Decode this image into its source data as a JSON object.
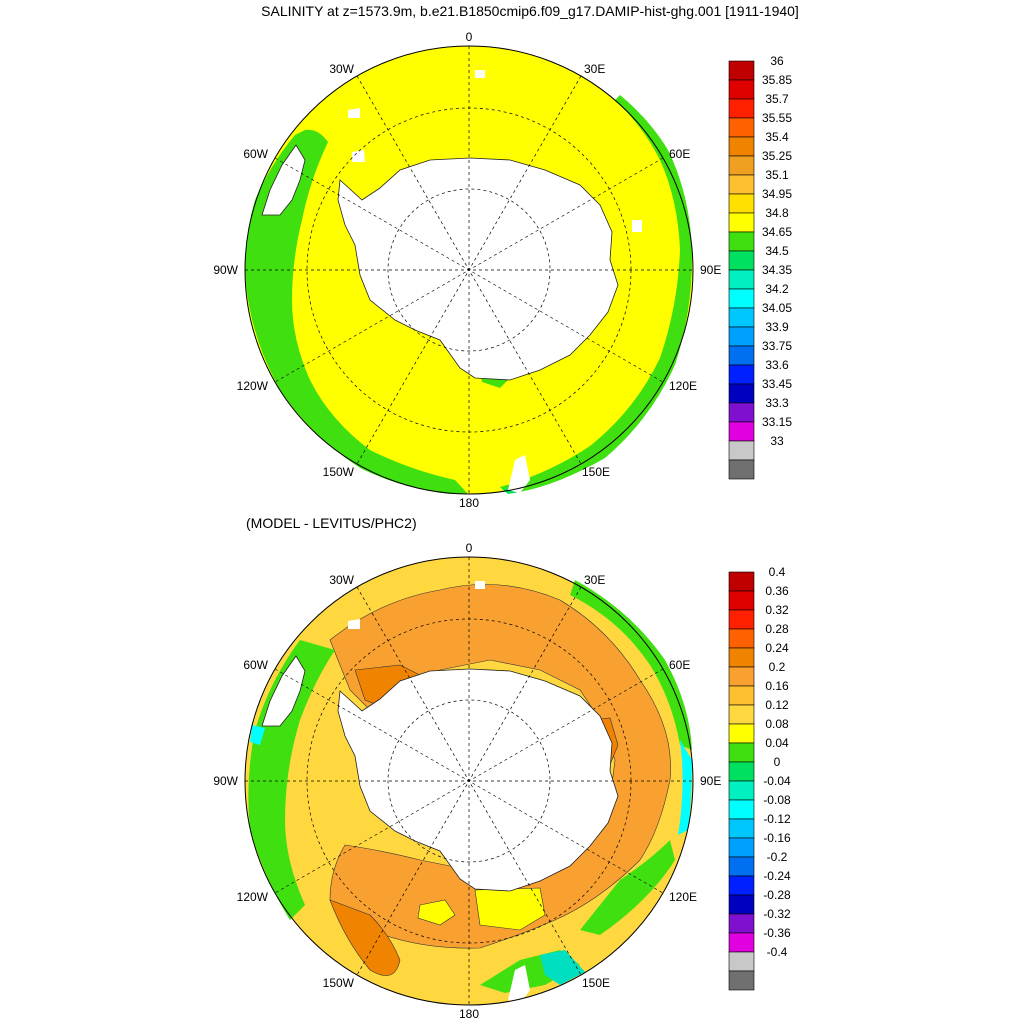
{
  "top_panel": {
    "title": "SALINITY at z=1573.9m, b.e21.B1850cmip6.f09_g17.DAMIP-hist-ghg.001 [1911-1940]",
    "lon_labels": [
      "0",
      "30E",
      "60E",
      "90E",
      "120E",
      "150E",
      "180",
      "150W",
      "120W",
      "90W",
      "60W",
      "30W"
    ],
    "colorbar": {
      "labels": [
        "36",
        "35.85",
        "35.7",
        "35.55",
        "35.4",
        "35.25",
        "35.1",
        "34.95",
        "34.8",
        "34.65",
        "34.5",
        "34.35",
        "34.2",
        "34.05",
        "33.9",
        "33.75",
        "33.6",
        "33.45",
        "33.3",
        "33.15",
        "33"
      ],
      "colors": [
        "#c00000",
        "#e00000",
        "#ff2000",
        "#ff6000",
        "#f08400",
        "#f0a020",
        "#ffc030",
        "#ffe000",
        "#ffff00",
        "#40e010",
        "#00e060",
        "#00f0c0",
        "#00ffff",
        "#00c8ff",
        "#00a0ff",
        "#0070f0",
        "#0020ff",
        "#0000c0",
        "#8010d0",
        "#e000e0",
        "#c8c8c8",
        "#707070"
      ]
    }
  },
  "bottom_panel": {
    "title": "(MODEL - LEVITUS/PHC2)",
    "lon_labels": [
      "0",
      "30E",
      "60E",
      "90E",
      "120E",
      "150E",
      "180",
      "150W",
      "120W",
      "90W",
      "60W",
      "30W"
    ],
    "colorbar": {
      "labels": [
        "0.4",
        "0.36",
        "0.32",
        "0.28",
        "0.24",
        "0.2",
        "0.16",
        "0.12",
        "0.08",
        "0.04",
        "0",
        "-0.04",
        "-0.08",
        "-0.12",
        "-0.16",
        "-0.2",
        "-0.24",
        "-0.28",
        "-0.32",
        "-0.36",
        "-0.4"
      ],
      "colors": [
        "#c00000",
        "#e00000",
        "#ff2000",
        "#ff6000",
        "#f08400",
        "#f8a030",
        "#ffc030",
        "#ffd840",
        "#ffff00",
        "#40e010",
        "#00e060",
        "#00f0c0",
        "#00ffff",
        "#00c8ff",
        "#00a0ff",
        "#0070f0",
        "#0020ff",
        "#0000c0",
        "#8010d0",
        "#e000e0",
        "#c8c8c8",
        "#707070"
      ]
    }
  }
}
